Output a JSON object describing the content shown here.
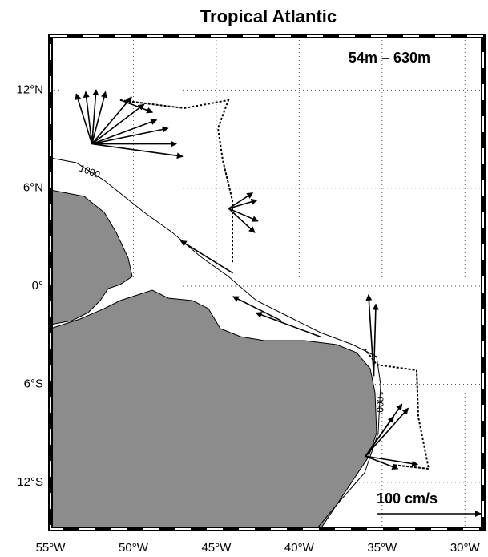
{
  "map": {
    "title": "Tropical Atlantic",
    "subtitle": "54m – 630m",
    "xlim": [
      -55,
      -28.9
    ],
    "ylim": [
      -14.85,
      15.3
    ],
    "xticks": [
      {
        "value": -55,
        "label": "55°W"
      },
      {
        "value": -50,
        "label": "50°W"
      },
      {
        "value": -45,
        "label": "45°W"
      },
      {
        "value": -40,
        "label": "40°W"
      },
      {
        "value": -35,
        "label": "35°W"
      },
      {
        "value": -30,
        "label": "30°W"
      }
    ],
    "yticks": [
      {
        "value": 12,
        "label": "12°N"
      },
      {
        "value": 6,
        "label": "6°N"
      },
      {
        "value": 0,
        "label": "0°"
      },
      {
        "value": -6,
        "label": "6°S"
      },
      {
        "value": -12,
        "label": "12°S"
      }
    ],
    "grid": true,
    "contour_labels": [
      "1000",
      "1000"
    ],
    "scale": {
      "label": "100 cm/s",
      "value": 100
    },
    "vector_color": "#000000",
    "vectors": [
      [
        -52.5,
        8.7,
        -15,
        48
      ],
      [
        -52.5,
        8.7,
        -6,
        50
      ],
      [
        -52.5,
        8.7,
        4,
        52
      ],
      [
        -52.5,
        8.7,
        13,
        50
      ],
      [
        -52.5,
        8.7,
        38,
        45
      ],
      [
        -52.5,
        8.7,
        50,
        38
      ],
      [
        -52.5,
        8.7,
        62,
        23
      ],
      [
        -52.5,
        8.7,
        73,
        15
      ],
      [
        -52.5,
        8.7,
        87,
        -12
      ],
      [
        -52.5,
        8.7,
        81,
        0
      ],
      [
        -50.8,
        11.4,
        31,
        -12
      ],
      [
        -44.25,
        4.75,
        27,
        8
      ],
      [
        -44.25,
        4.75,
        28,
        -12
      ],
      [
        -44.25,
        4.75,
        25,
        -23
      ],
      [
        -44.25,
        4.75,
        23,
        15
      ],
      [
        -44,
        0.8,
        -50,
        31
      ],
      [
        -41.1,
        -2.1,
        -46,
        23
      ],
      [
        -38.7,
        -3.1,
        -62,
        23
      ],
      [
        -35.5,
        -5.5,
        -5,
        78
      ],
      [
        -35.5,
        -5.5,
        2,
        69
      ],
      [
        -36,
        -10.4,
        41,
        46
      ],
      [
        -36,
        -10.4,
        35,
        50
      ],
      [
        -36,
        -10.4,
        27,
        38
      ],
      [
        -36,
        -10.4,
        50,
        -8
      ],
      [
        -36,
        -10.4,
        31,
        -12
      ]
    ]
  }
}
